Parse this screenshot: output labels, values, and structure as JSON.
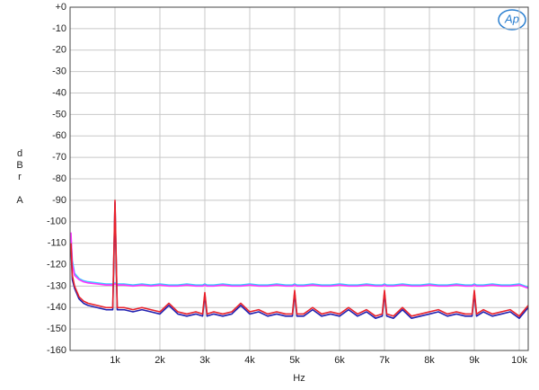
{
  "chart_data": {
    "type": "line",
    "logo": "Ap",
    "x_label": "Hz",
    "y_label": "dBr A",
    "xlim": [
      0,
      10200
    ],
    "ylim": [
      -160,
      0
    ],
    "xticks": [
      {
        "value": 1000,
        "label": "1k"
      },
      {
        "value": 2000,
        "label": "2k"
      },
      {
        "value": 3000,
        "label": "3k"
      },
      {
        "value": 4000,
        "label": "4k"
      },
      {
        "value": 5000,
        "label": "5k"
      },
      {
        "value": 6000,
        "label": "6k"
      },
      {
        "value": 7000,
        "label": "7k"
      },
      {
        "value": 8000,
        "label": "8k"
      },
      {
        "value": 9000,
        "label": "9k"
      },
      {
        "value": 10000,
        "label": "10k"
      }
    ],
    "yticks": [
      {
        "value": 0,
        "label": "+0"
      },
      -10,
      -20,
      -30,
      -40,
      -50,
      -60,
      -70,
      -80,
      -90,
      -100,
      -110,
      -120,
      -130,
      -140,
      -150,
      -160
    ],
    "grid": true,
    "x": [
      20,
      50,
      100,
      200,
      300,
      400,
      600,
      800,
      950,
      1000,
      1050,
      1200,
      1400,
      1600,
      1800,
      2000,
      2200,
      2400,
      2600,
      2800,
      2950,
      3000,
      3050,
      3200,
      3400,
      3600,
      3800,
      4000,
      4200,
      4400,
      4600,
      4800,
      4950,
      5000,
      5050,
      5200,
      5400,
      5600,
      5800,
      6000,
      6200,
      6400,
      6600,
      6800,
      6950,
      7000,
      7050,
      7200,
      7400,
      7600,
      7800,
      8000,
      8200,
      8400,
      8600,
      8800,
      8950,
      9000,
      9050,
      9200,
      9400,
      9600,
      9800,
      10000,
      10200
    ],
    "series": [
      {
        "color": "#33ccff",
        "values": [
          -107,
          -118,
          -124,
          -126.5,
          -127.5,
          -128,
          -128.5,
          -129,
          -129,
          -128.5,
          -129,
          -129,
          -129.5,
          -129,
          -129.5,
          -129,
          -129.5,
          -129.5,
          -129,
          -129.5,
          -129.5,
          -129,
          -129.5,
          -129.5,
          -129,
          -129.5,
          -129.5,
          -129,
          -129.5,
          -129.5,
          -129,
          -129.5,
          -129.5,
          -129,
          -129.5,
          -129.5,
          -129,
          -129.5,
          -129.5,
          -129,
          -129.5,
          -129.5,
          -129,
          -129.5,
          -129.5,
          -129,
          -129.5,
          -129.5,
          -129,
          -129.5,
          -129.5,
          -129,
          -129.5,
          -129.5,
          -129,
          -129.5,
          -129.5,
          -129,
          -129.5,
          -129.5,
          -129,
          -129.5,
          -129.5,
          -129,
          -130.5
        ]
      },
      {
        "color": "#ff33ff",
        "values": [
          -105,
          -120,
          -125,
          -127,
          -128,
          -128.5,
          -129,
          -129.5,
          -129.5,
          -129,
          -129.5,
          -129.5,
          -130,
          -129.5,
          -130,
          -129.5,
          -130,
          -130,
          -129.5,
          -130,
          -130,
          -129.5,
          -130,
          -130,
          -129.5,
          -130,
          -130,
          -129.5,
          -130,
          -130,
          -129.5,
          -130,
          -130,
          -129.5,
          -130,
          -130,
          -129.5,
          -130,
          -130,
          -129.5,
          -130,
          -130,
          -129.5,
          -130,
          -130,
          -129.5,
          -130,
          -130,
          -129.5,
          -130,
          -130,
          -129.5,
          -130,
          -130,
          -129.5,
          -130,
          -130,
          -129.5,
          -130,
          -130,
          -129.5,
          -130,
          -130,
          -129.5,
          -131
        ]
      },
      {
        "color": "#2020b0",
        "values": [
          -112,
          -127,
          -131,
          -136,
          -138,
          -139,
          -140,
          -141,
          -141,
          -91,
          -141,
          -141,
          -142,
          -141,
          -142,
          -143,
          -139,
          -143,
          -144,
          -143,
          -144,
          -134,
          -144,
          -143,
          -144,
          -143,
          -139,
          -143,
          -142,
          -144,
          -143,
          -144,
          -144,
          -133,
          -144,
          -144,
          -141,
          -144,
          -143,
          -144,
          -141,
          -144,
          -142,
          -145,
          -144,
          -133,
          -144,
          -145,
          -141,
          -145,
          -144,
          -143,
          -142,
          -144,
          -143,
          -144,
          -144,
          -133,
          -144,
          -142,
          -144,
          -143,
          -142,
          -145,
          -140
        ]
      },
      {
        "color": "#e8202a",
        "values": [
          -110,
          -125,
          -130,
          -135,
          -137,
          -138,
          -139,
          -140,
          -140,
          -90,
          -140,
          -140,
          -141,
          -140,
          -141,
          -142,
          -138,
          -142,
          -143,
          -142,
          -143,
          -133,
          -143,
          -142,
          -143,
          -142,
          -138,
          -142,
          -141,
          -143,
          -142,
          -143,
          -143,
          -132,
          -143,
          -143,
          -140,
          -143,
          -142,
          -143,
          -140,
          -143,
          -141,
          -144,
          -143,
          -132,
          -143,
          -144,
          -140,
          -144,
          -143,
          -142,
          -141,
          -143,
          -142,
          -143,
          -143,
          -132,
          -143,
          -141,
          -143,
          -142,
          -141,
          -144,
          -139
        ]
      }
    ]
  }
}
